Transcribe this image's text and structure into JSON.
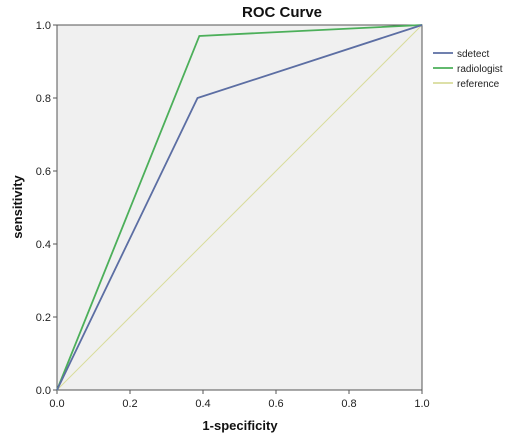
{
  "chart_data": {
    "type": "line",
    "title": "ROC Curve",
    "xlabel": "1-specificity",
    "ylabel": "sensitivity",
    "xlim": [
      0,
      1
    ],
    "ylim": [
      0,
      1
    ],
    "xticks": [
      "0.0",
      "0.2",
      "0.4",
      "0.6",
      "0.8",
      "1.0"
    ],
    "yticks": [
      "0.0",
      "0.2",
      "0.4",
      "0.6",
      "0.8",
      "1.0"
    ],
    "grid": false,
    "legend_position": "right",
    "plot_background": "#f0f0f0",
    "series": [
      {
        "name": "sdetect",
        "color": "#5c6ea3",
        "x": [
          0,
          0.385,
          1.0
        ],
        "y": [
          0,
          0.8,
          1.0
        ]
      },
      {
        "name": "radiologist",
        "color": "#4caf5a",
        "x": [
          0,
          0.39,
          1.0
        ],
        "y": [
          0,
          0.97,
          1.0
        ]
      },
      {
        "name": "reference",
        "color": "#d8dc9c",
        "x": [
          0,
          1.0
        ],
        "y": [
          0,
          1.0
        ]
      }
    ]
  }
}
